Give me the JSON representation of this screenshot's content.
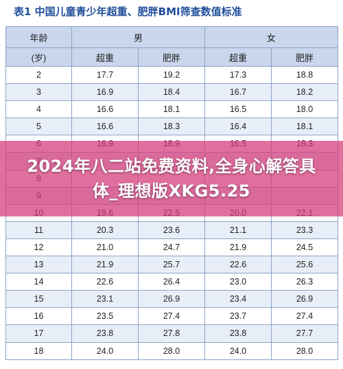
{
  "title": "表1 中国儿童青少年超重、肥胖BMI筛查数值标准",
  "header": {
    "age": "年龄",
    "age_unit": "(岁)",
    "male": "男",
    "female": "女",
    "overweight": "超重",
    "obese": "肥胖"
  },
  "rows": [
    {
      "age": "2",
      "m_ow": "17.7",
      "m_ob": "19.2",
      "f_ow": "17.3",
      "f_ob": "18.8"
    },
    {
      "age": "3",
      "m_ow": "16.9",
      "m_ob": "18.4",
      "f_ow": "16.7",
      "f_ob": "18.2"
    },
    {
      "age": "4",
      "m_ow": "16.6",
      "m_ob": "18.1",
      "f_ow": "16.5",
      "f_ob": "18.0"
    },
    {
      "age": "5",
      "m_ow": "16.6",
      "m_ob": "18.3",
      "f_ow": "16.4",
      "f_ob": "18.1"
    },
    {
      "age": "6",
      "m_ow": "16.9",
      "m_ob": "18.9",
      "f_ow": "16.5",
      "f_ob": "18.3"
    },
    {
      "age": "7",
      "m_ow": "",
      "m_ob": "",
      "f_ow": "",
      "f_ob": ""
    },
    {
      "age": "8",
      "m_ow": "",
      "m_ob": "",
      "f_ow": "",
      "f_ob": ""
    },
    {
      "age": "9",
      "m_ow": "",
      "m_ob": "",
      "f_ow": "",
      "f_ob": ""
    },
    {
      "age": "10",
      "m_ow": "19.6",
      "m_ob": "22.5",
      "f_ow": "20.0",
      "f_ob": "22.1"
    },
    {
      "age": "11",
      "m_ow": "20.3",
      "m_ob": "23.6",
      "f_ow": "21.1",
      "f_ob": "23.3"
    },
    {
      "age": "12",
      "m_ow": "21.0",
      "m_ob": "24.7",
      "f_ow": "21.9",
      "f_ob": "24.5"
    },
    {
      "age": "13",
      "m_ow": "21.9",
      "m_ob": "25.7",
      "f_ow": "22.6",
      "f_ob": "25.6"
    },
    {
      "age": "14",
      "m_ow": "22.6",
      "m_ob": "26.4",
      "f_ow": "23.0",
      "f_ob": "26.3"
    },
    {
      "age": "15",
      "m_ow": "23.1",
      "m_ob": "26.9",
      "f_ow": "23.4",
      "f_ob": "26.9"
    },
    {
      "age": "16",
      "m_ow": "23.5",
      "m_ob": "27.4",
      "f_ow": "23.7",
      "f_ob": "27.4"
    },
    {
      "age": "17",
      "m_ow": "23.8",
      "m_ob": "27.8",
      "f_ow": "23.8",
      "f_ob": "27.7"
    },
    {
      "age": "18",
      "m_ow": "24.0",
      "m_ob": "28.0",
      "f_ow": "24.0",
      "f_ob": "28.0"
    }
  ],
  "banner": {
    "text": "2024年八二站免费资料,全身心解答具体_理想版XKG5.25",
    "color": "#d63778"
  }
}
